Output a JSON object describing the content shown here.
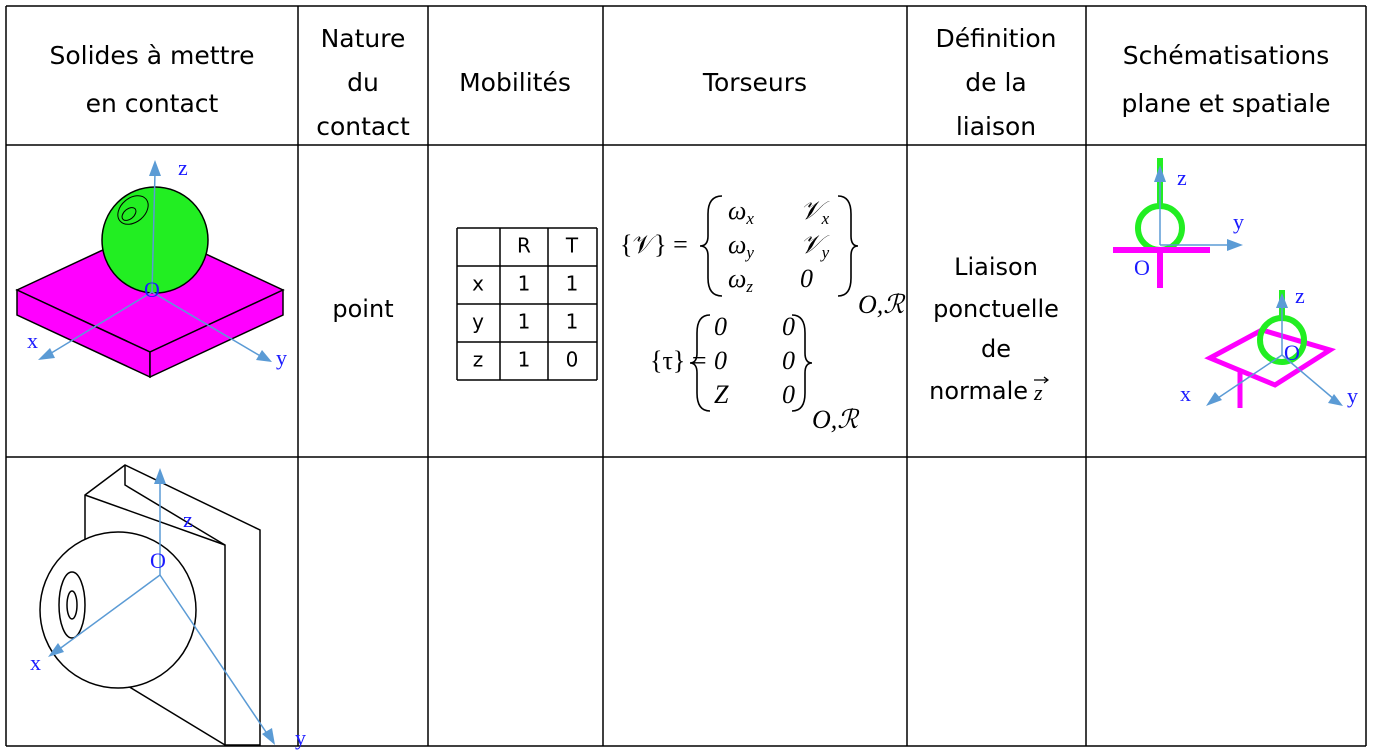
{
  "table": {
    "header": [
      [
        "Solides à mettre",
        "en contact"
      ],
      [
        "Nature",
        "du",
        "contact"
      ],
      [
        "Mobilités"
      ],
      [
        "Torseurs"
      ],
      [
        "Définition",
        "de la",
        "liaison"
      ],
      [
        "Schématisations",
        "plane et spatiale"
      ]
    ],
    "row1": {
      "contact": "point",
      "mobilities": {
        "columns": [
          "R",
          "T"
        ],
        "rows": [
          [
            "x",
            1,
            1
          ],
          [
            "y",
            1,
            1
          ],
          [
            "z",
            1,
            0
          ]
        ]
      },
      "torsors": {
        "kinematic": {
          "lhs": "{𝒱} =",
          "rows": [
            [
              {
                "b": "ω",
                "s": "x"
              },
              {
                "b": "𝒱",
                "s": "x"
              }
            ],
            [
              {
                "b": "ω",
                "s": "y"
              },
              {
                "b": "𝒱",
                "s": "y"
              }
            ],
            [
              {
                "b": "ω",
                "s": "z"
              },
              {
                "b": "0"
              }
            ]
          ],
          "sub": "O,ℛ"
        },
        "static": {
          "lhs": "{τ} =",
          "rows": [
            [
              {
                "b": "0"
              },
              {
                "b": "0"
              }
            ],
            [
              {
                "b": "0"
              },
              {
                "b": "0"
              }
            ],
            [
              {
                "b": "Z"
              },
              {
                "b": "0"
              }
            ]
          ],
          "sub": "O,ℛ"
        }
      },
      "definition": {
        "lines": [
          "Liaison",
          "ponctuelle",
          "de",
          "normale"
        ],
        "vector": "z"
      },
      "figure": {
        "labels": [
          "z",
          "O",
          "x",
          "y"
        ]
      },
      "planar_schema": {
        "labels": [
          "z",
          "y",
          "O"
        ]
      },
      "spatial_schema": {
        "labels": [
          "z",
          "O",
          "x",
          "y"
        ]
      }
    },
    "row2": {
      "figure": {
        "labels": [
          "z",
          "O",
          "x",
          "y"
        ]
      }
    }
  }
}
